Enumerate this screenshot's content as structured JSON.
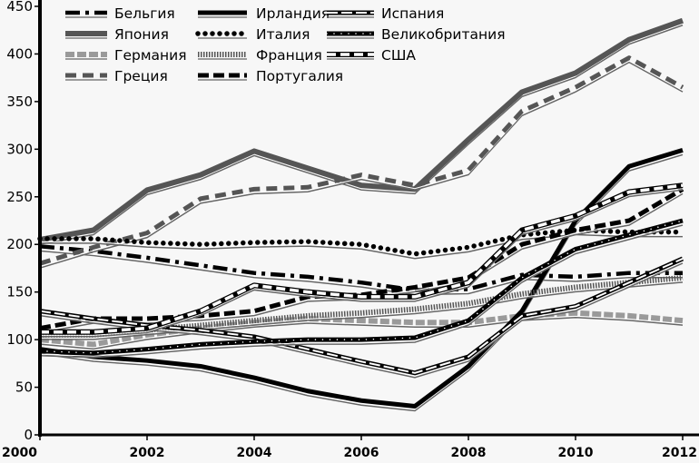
{
  "chart_data": {
    "type": "line",
    "title": "",
    "xlabel": "",
    "ylabel": "",
    "x": [
      2000,
      2001,
      2002,
      2003,
      2004,
      2005,
      2006,
      2007,
      2008,
      2009,
      2010,
      2011,
      2012
    ],
    "xlim": [
      2000,
      2012
    ],
    "ylim": [
      0,
      450
    ],
    "xticks": [
      "2000",
      "2002",
      "2004",
      "2006",
      "2008",
      "2010",
      "2012"
    ],
    "yticks": [
      "0",
      "50",
      "100",
      "150",
      "200",
      "250",
      "300",
      "350",
      "400",
      "450"
    ],
    "grid": false,
    "legend_placement": "top",
    "series": [
      {
        "name": "Бельгия",
        "style": "dash-dot-black",
        "values": [
          198,
          193,
          186,
          178,
          170,
          166,
          160,
          152,
          153,
          168,
          166,
          170,
          170
        ]
      },
      {
        "name": "Япония",
        "style": "solid-darkgray",
        "values": [
          205,
          215,
          257,
          273,
          298,
          280,
          262,
          258,
          310,
          360,
          380,
          415,
          435
        ]
      },
      {
        "name": "Германия",
        "style": "dashed-lightgray",
        "values": [
          100,
          95,
          105,
          112,
          118,
          122,
          120,
          118,
          118,
          125,
          128,
          125,
          120
        ]
      },
      {
        "name": "Греция",
        "style": "dashed-gray",
        "values": [
          180,
          197,
          212,
          248,
          258,
          260,
          273,
          262,
          278,
          340,
          365,
          396,
          365
        ]
      },
      {
        "name": "Ирландия",
        "style": "solid-black",
        "values": [
          90,
          82,
          78,
          72,
          60,
          46,
          36,
          30,
          72,
          130,
          225,
          282,
          299
        ]
      },
      {
        "name": "Италия",
        "style": "dotted-black",
        "values": [
          206,
          206,
          202,
          200,
          202,
          203,
          200,
          190,
          197,
          210,
          215,
          213,
          213
        ]
      },
      {
        "name": "Франция",
        "style": "striped-dark",
        "values": [
          105,
          105,
          110,
          115,
          120,
          125,
          128,
          132,
          138,
          148,
          155,
          160,
          165
        ]
      },
      {
        "name": "Португалия",
        "style": "dashed-black",
        "values": [
          112,
          122,
          122,
          125,
          130,
          145,
          147,
          155,
          165,
          200,
          215,
          225,
          258
        ]
      },
      {
        "name": "Испания",
        "style": "black-white-dashed",
        "values": [
          130,
          122,
          115,
          110,
          103,
          90,
          77,
          65,
          82,
          125,
          135,
          160,
          185
        ]
      },
      {
        "name": "Великобритания",
        "style": "black-white-dots",
        "values": [
          88,
          86,
          90,
          95,
          98,
          100,
          100,
          102,
          120,
          165,
          195,
          210,
          225
        ]
      },
      {
        "name": "США",
        "style": "white-black-outline",
        "values": [
          108,
          108,
          112,
          130,
          157,
          150,
          145,
          145,
          160,
          215,
          230,
          255,
          262
        ]
      }
    ]
  }
}
